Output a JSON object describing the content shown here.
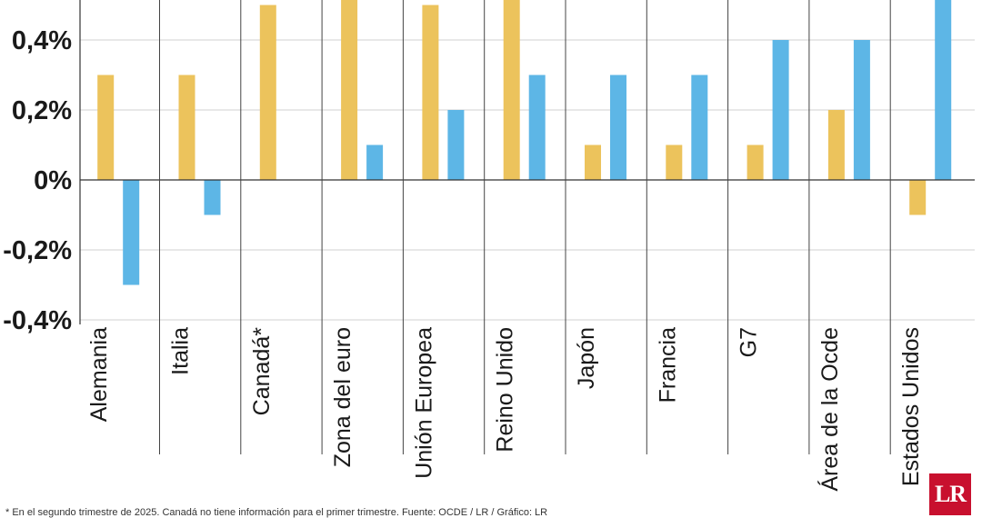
{
  "chart_data": {
    "type": "bar",
    "categories": [
      "Alemania",
      "Italia",
      "Canadá*",
      "Zona del euro",
      "Unión Europea",
      "Reino Unido",
      "Japón",
      "Francia",
      "G7",
      "Área de la Ocde",
      "Estados Unidos"
    ],
    "series": [
      {
        "values": [
          0.3,
          0.3,
          0.5,
          0.6,
          0.5,
          0.6,
          0.1,
          0.1,
          0.1,
          0.2,
          -0.1
        ],
        "color": "#ECC35C"
      },
      {
        "values": [
          -0.3,
          -0.1,
          null,
          0.1,
          0.2,
          0.3,
          0.3,
          0.3,
          0.4,
          0.4,
          0.6
        ],
        "color": "#5DB6E6"
      }
    ],
    "y_ticks": [
      {
        "value": 0.4,
        "label": "0,4%"
      },
      {
        "value": 0.2,
        "label": "0,2%"
      },
      {
        "value": 0.0,
        "label": "0%"
      },
      {
        "value": -0.2,
        "label": "-0,2%"
      },
      {
        "value": -0.4,
        "label": "-0,4%"
      }
    ],
    "ylim": [
      -0.4,
      0.5
    ],
    "grid": true
  },
  "logo": {
    "text": "LR",
    "color": "#c8102e"
  },
  "footnote": "* En el segundo trimestre de 2025. Canadá no tiene información para el primer trimestre. Fuente: OCDE / LR / Gráfico: LR"
}
